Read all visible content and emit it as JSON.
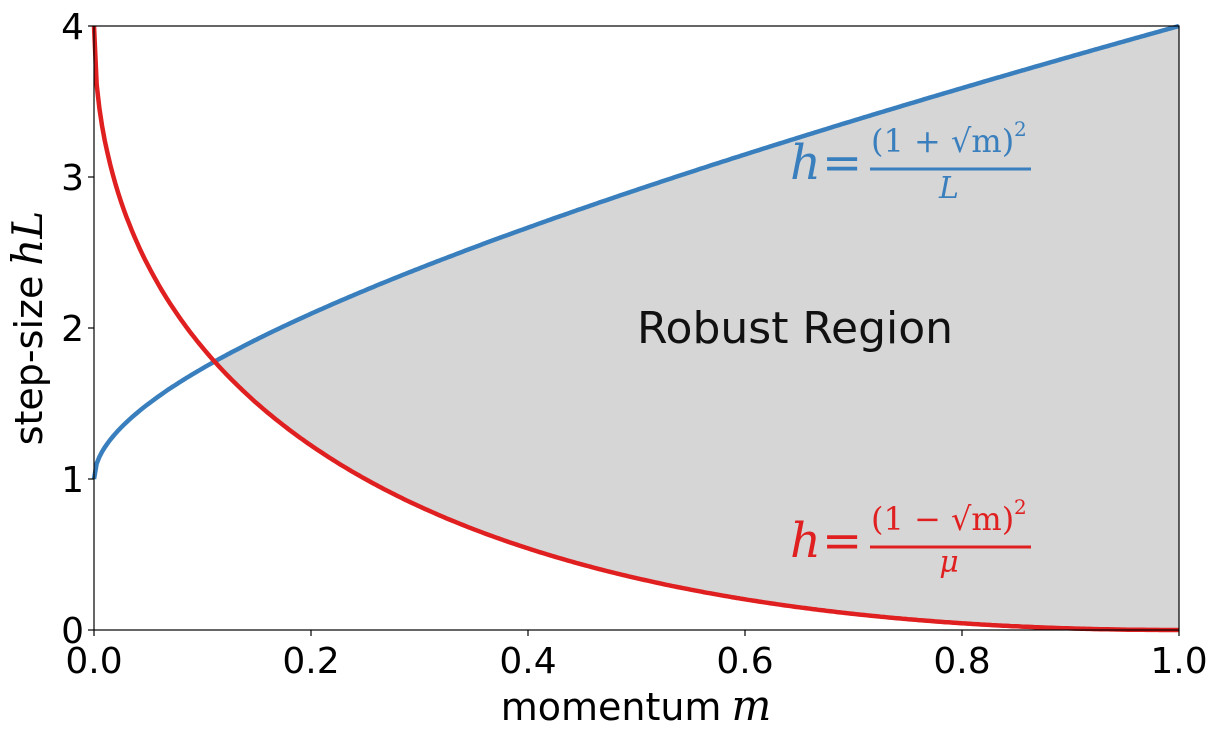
{
  "chart_data": {
    "type": "area",
    "title": "",
    "xlabel": "momentum",
    "xlabel_var": "m",
    "ylabel": "step-size",
    "ylabel_var": "hL",
    "xlim": [
      0.0,
      1.0
    ],
    "ylim": [
      0,
      4
    ],
    "x_ticks": [
      "0.0",
      "0.2",
      "0.4",
      "0.6",
      "0.8",
      "1.0"
    ],
    "y_ticks": [
      "0",
      "1",
      "2",
      "3",
      "4"
    ],
    "grid": false,
    "series": [
      {
        "label_lhs": "h",
        "label_num": "(1 + √m)",
        "label_den": "L",
        "color": "#3a7fbd",
        "x": [
          0.0,
          0.01,
          0.05,
          0.1,
          0.2,
          0.3,
          0.4,
          0.5,
          0.6,
          0.7,
          0.8,
          0.9,
          1.0
        ],
        "values": [
          1.0,
          1.21,
          1.5,
          1.73,
          2.09,
          2.4,
          2.66,
          2.91,
          3.15,
          3.37,
          3.59,
          3.8,
          4.0
        ]
      },
      {
        "label_lhs": "h",
        "label_num": "(1 − √m)",
        "label_den": "μ",
        "color": "#e02020",
        "x": [
          0.0,
          0.01,
          0.05,
          0.1,
          0.2,
          0.3,
          0.4,
          0.5,
          0.6,
          0.7,
          0.8,
          0.9,
          1.0
        ],
        "values": [
          4.0,
          3.24,
          2.51,
          1.87,
          1.22,
          0.79,
          0.53,
          0.34,
          0.21,
          0.12,
          0.05,
          0.01,
          0.0
        ]
      }
    ],
    "annotations": {
      "region": "Robust Region",
      "region_color": "#d6d6d6"
    }
  }
}
